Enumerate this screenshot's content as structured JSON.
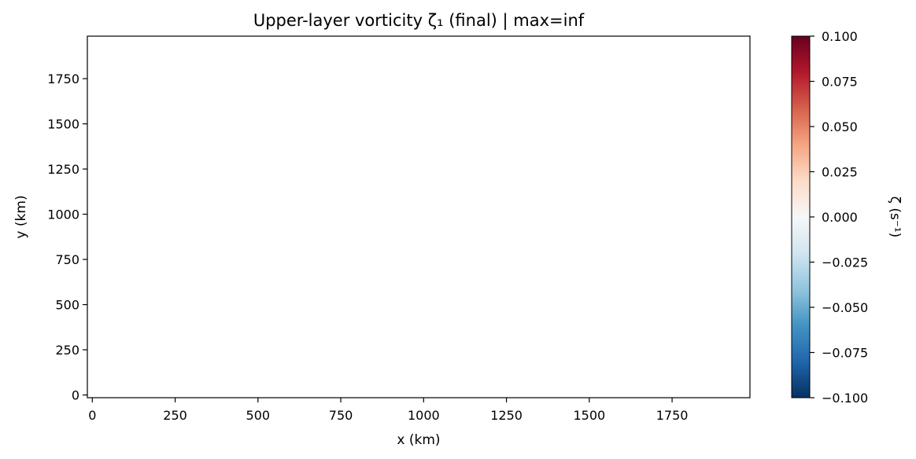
{
  "chart_data": {
    "type": "heatmap",
    "title": "Upper-layer vorticity ζ₁ (final) | max=inf",
    "xlabel": "x (km)",
    "ylabel": "y (km)",
    "x_ticks": [
      0,
      250,
      500,
      750,
      1000,
      1250,
      1500,
      1750
    ],
    "y_ticks": [
      0,
      250,
      500,
      750,
      1000,
      1250,
      1500,
      1750
    ],
    "x_tick_labels": [
      "0",
      "250",
      "500",
      "750",
      "1000",
      "1250",
      "1500",
      "1750"
    ],
    "y_tick_labels": [
      "0",
      "250",
      "500",
      "750",
      "1000",
      "1250",
      "1500",
      "1750"
    ],
    "xlim": [
      -15,
      1985
    ],
    "ylim": [
      -15,
      1985
    ],
    "grid": false,
    "data": "empty (non-finite values, nothing drawn)",
    "colorbar": {
      "label": "ζ (s⁻¹)",
      "colormap": "RdBu_r",
      "range": [
        -0.1,
        0.1
      ],
      "ticks": [
        -0.1,
        -0.075,
        -0.05,
        -0.025,
        0,
        0.025,
        0.05,
        0.075,
        0.1
      ],
      "tick_labels": [
        "−0.100",
        "−0.075",
        "−0.050",
        "−0.025",
        "0.000",
        "0.025",
        "0.050",
        "0.075",
        "0.100"
      ],
      "colors": [
        "#053061",
        "#2166ac",
        "#4393c3",
        "#92c5de",
        "#d1e5f0",
        "#f7f7f7",
        "#fddbc7",
        "#f4a582",
        "#d6604d",
        "#b2182b",
        "#67001f"
      ]
    }
  }
}
